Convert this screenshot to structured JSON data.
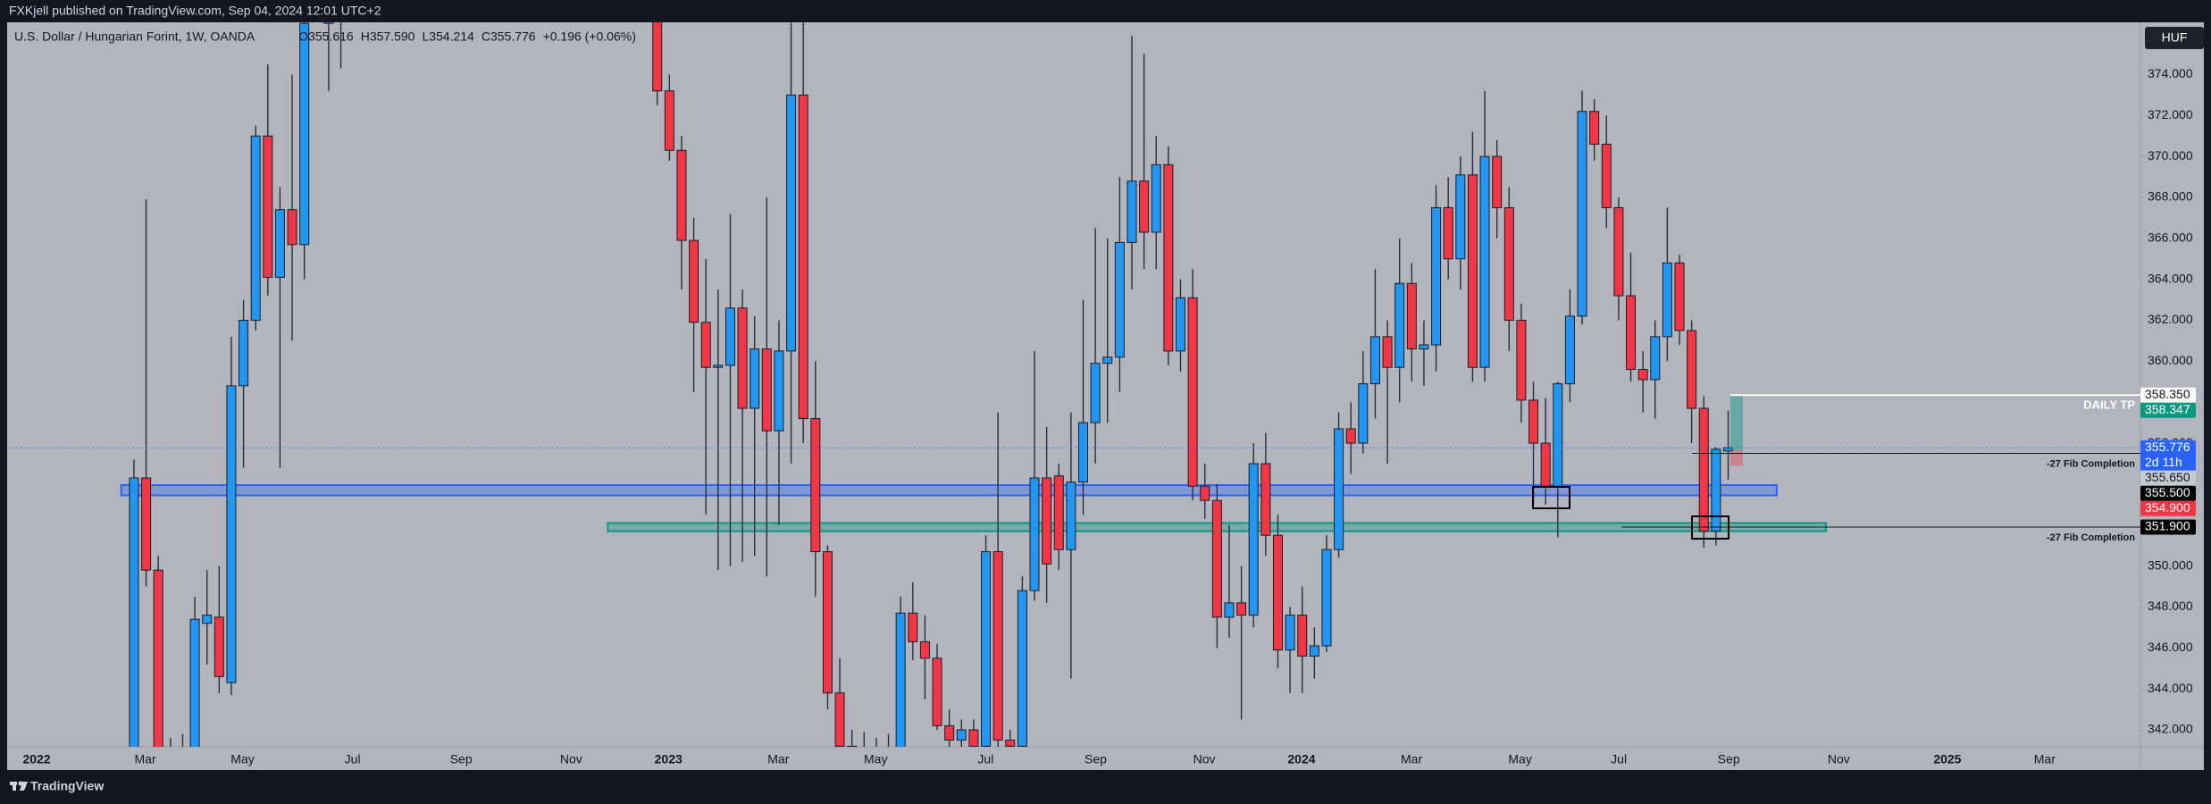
{
  "header": {
    "published": "FXKjell published on TradingView.com, Sep 04, 2024 12:01 UTC+2"
  },
  "chart_data": {
    "type": "candlestick",
    "title": "U.S. Dollar / Hungarian Forint, 1W, OANDA",
    "ohlc_legend": [
      "O355.616",
      "H357.590",
      "L354.214",
      "C355.776",
      "+0.196 (+0.06%)"
    ],
    "currency": "HUF",
    "x_labels": [
      "2022",
      "Mar",
      "May",
      "Jul",
      "Sep",
      "Nov",
      "2023",
      "Mar",
      "May",
      "Jul",
      "Sep",
      "Nov",
      "2024",
      "Mar",
      "May",
      "Jul",
      "Sep",
      "Nov",
      "2025",
      "Mar"
    ],
    "open": [
      340.5,
      354.3,
      349.8,
      341,
      339,
      340.5,
      347.2,
      347.5,
      344.3,
      358.8,
      362,
      371,
      364.1,
      367.4,
      365.7,
      null,
      376.5,
      378,
      null,
      null,
      null,
      null,
      null,
      null,
      null,
      null,
      null,
      null,
      null,
      null,
      null,
      null,
      null,
      null,
      null,
      null,
      null,
      null,
      null,
      null,
      null,
      null,
      null,
      378,
      373.2,
      370.3,
      365.9,
      361.9,
      359.7,
      359.8,
      362.6,
      357.7,
      360.6,
      356.6,
      360.5,
      373,
      357.2,
      350.7,
      343.8,
      341.2,
      339.8,
      339.5,
      340.5,
      339.6,
      347.7,
      346.3,
      345.5,
      342.2,
      341.5,
      342,
      341.2,
      350.7,
      341.5,
      341.2,
      348.8,
      354.3,
      354.4,
      350.8,
      354.1,
      357,
      359.9,
      360.2,
      365.8,
      368.8,
      366.3,
      369.6,
      360.5,
      363.1,
      353.9,
      353.2,
      347.5,
      348.2,
      347.6,
      355,
      351.5,
      345.9,
      347.6,
      345.6,
      346.1,
      350.8,
      356.7,
      356,
      358.9,
      361.2,
      359.7,
      363.8,
      360.6,
      360.8,
      367.5,
      365,
      369.1,
      359.7,
      370,
      367.5,
      362,
      358.1,
      356,
      353.9,
      358.9,
      362.2,
      372.2,
      370.6,
      367.5,
      363.2,
      359.6,
      359.1,
      361.2,
      364.8,
      361.5,
      357.7,
      351.7,
      355.616
    ],
    "high": [
      355.2,
      367.9,
      350.5,
      341.6,
      341.8,
      348.5,
      349.8,
      350,
      361.2,
      363,
      371.5,
      374.5,
      368.5,
      374,
      378,
      null,
      381,
      381,
      null,
      null,
      null,
      null,
      null,
      null,
      null,
      null,
      null,
      null,
      null,
      null,
      null,
      null,
      null,
      null,
      null,
      null,
      null,
      null,
      null,
      null,
      null,
      null,
      null,
      378.8,
      374,
      371,
      367,
      365,
      363.5,
      367.2,
      363.5,
      362.2,
      368,
      362,
      378,
      378,
      360,
      351,
      345.5,
      342,
      341.9,
      341.6,
      341.8,
      348.5,
      349.2,
      347.6,
      346.2,
      343,
      342.5,
      342.5,
      351.5,
      357.5,
      342,
      349.5,
      360.5,
      356.8,
      355,
      357.5,
      363,
      366.5,
      366,
      369,
      375.9,
      375,
      371,
      370.5,
      364,
      364.5,
      355,
      354,
      352,
      350,
      356,
      356.5,
      352.5,
      348,
      349,
      347,
      351.5,
      357.5,
      358,
      360.5,
      364.5,
      362,
      366,
      364.8,
      362,
      368.6,
      369,
      370,
      371.2,
      373.2,
      370.8,
      368.5,
      362.8,
      359,
      358.2,
      359,
      363.5,
      373.2,
      372.8,
      372,
      368,
      365.3,
      360.5,
      362,
      367.5,
      365.2,
      362,
      358.3,
      355.8,
      357.59
    ],
    "low": [
      339.5,
      349,
      340,
      338,
      337,
      340,
      345.2,
      343.8,
      343.7,
      354.8,
      361.5,
      363.2,
      354.8,
      361,
      364,
      null,
      373.2,
      374.3,
      null,
      null,
      null,
      null,
      null,
      null,
      null,
      null,
      null,
      null,
      null,
      null,
      null,
      null,
      null,
      null,
      null,
      null,
      null,
      null,
      null,
      null,
      null,
      null,
      null,
      372.5,
      369.8,
      363.5,
      358.5,
      352.5,
      349.8,
      350,
      350.2,
      350.5,
      349.5,
      352,
      355,
      356,
      348.5,
      343,
      340,
      339,
      338.5,
      338.2,
      339,
      339.3,
      345.4,
      343.5,
      342,
      341,
      340.8,
      340.5,
      340.8,
      340.5,
      340,
      340.5,
      348.3,
      348.2,
      349.8,
      344.5,
      352.5,
      355,
      357,
      358.5,
      363.5,
      364.5,
      364.5,
      359.8,
      359.5,
      353.2,
      352.3,
      346,
      346.5,
      342.5,
      347,
      350.5,
      345,
      343.8,
      343.8,
      344.5,
      345.8,
      350.4,
      354.5,
      355.5,
      357.2,
      355,
      358,
      359,
      358.8,
      359.5,
      364,
      363.5,
      359,
      359,
      366,
      360.5,
      357,
      353,
      353,
      351.4,
      358,
      361.8,
      369.8,
      366.5,
      362,
      359,
      357.5,
      357.2,
      360,
      360.8,
      356,
      350.9,
      351,
      354.214
    ],
    "close": [
      354.3,
      349.8,
      340.8,
      339,
      340.5,
      347.4,
      347.6,
      344.6,
      358.8,
      362,
      371,
      364.1,
      367.4,
      365.7,
      376.5,
      null,
      378,
      379,
      null,
      null,
      null,
      null,
      null,
      null,
      null,
      null,
      null,
      null,
      null,
      null,
      null,
      null,
      null,
      null,
      null,
      null,
      null,
      null,
      null,
      null,
      null,
      null,
      null,
      373.2,
      370.3,
      365.9,
      361.9,
      359.7,
      359.8,
      362.6,
      357.7,
      360.6,
      356.6,
      360.5,
      373,
      357.2,
      350.7,
      343.8,
      341.2,
      339.8,
      339.5,
      340.5,
      339.6,
      347.7,
      346.3,
      345.5,
      342.2,
      341.5,
      342,
      341.2,
      350.7,
      341.5,
      341.2,
      348.8,
      354.3,
      350.1,
      350.8,
      354.1,
      357,
      359.9,
      360.2,
      365.8,
      368.8,
      366.3,
      369.6,
      360.5,
      363.1,
      353.9,
      353.2,
      347.5,
      348.2,
      347.6,
      355,
      351.5,
      345.9,
      347.6,
      345.6,
      346.1,
      350.8,
      356.7,
      356,
      358.9,
      361.2,
      359.7,
      363.8,
      360.6,
      360.8,
      367.5,
      365,
      369.1,
      359.7,
      370,
      367.5,
      362,
      358.1,
      356,
      353.9,
      358.9,
      362.2,
      372.2,
      370.6,
      367.5,
      363.2,
      359.6,
      359.1,
      361.2,
      364.8,
      361.5,
      357.7,
      351.7,
      355.7,
      355.776
    ],
    "up_color": "#2196f3",
    "down_color": "#f23645",
    "ylim": [
      341.17,
      376.55
    ],
    "yticks": [
      {
        "value": 342,
        "label": "342.000"
      },
      {
        "value": 344,
        "label": "344.000"
      },
      {
        "value": 346,
        "label": "346.000"
      },
      {
        "value": 348,
        "label": "348.000"
      },
      {
        "value": 350,
        "label": "350.000"
      },
      {
        "value": 352,
        "label": "352.000"
      },
      {
        "value": 354,
        "label": "354.000"
      },
      {
        "value": 356,
        "label": "356.000"
      },
      {
        "value": 358,
        "label": "358.000"
      },
      {
        "value": 360,
        "label": "360.000"
      },
      {
        "value": 362,
        "label": "362.000"
      },
      {
        "value": 364,
        "label": "364.000"
      },
      {
        "value": 366,
        "label": "366.000"
      },
      {
        "value": 368,
        "label": "368.000"
      },
      {
        "value": 370,
        "label": "370.000"
      },
      {
        "value": 372,
        "label": "372.000"
      },
      {
        "value": 374,
        "label": "374.000"
      }
    ],
    "zones": [
      {
        "low": 353.45,
        "high": 353.95,
        "color": "#2962ff"
      },
      {
        "low": 351.7,
        "high": 352.1,
        "color": "#089981"
      }
    ],
    "levels": [
      {
        "value": 358.35,
        "label": "DAILY TP",
        "color": "#ffffff"
      },
      {
        "value": 355.5,
        "label": "-27 Fib Completion",
        "color": "#131722"
      },
      {
        "value": 351.9,
        "label": "-27 Fib Completion",
        "color": "#131722"
      }
    ],
    "position": {
      "target": 358.347,
      "entry": 355.65,
      "stop": 354.9
    },
    "price_tags": [
      {
        "value": 358.35,
        "label": "358.350",
        "bg": "#ffffff",
        "fg": "#131722"
      },
      {
        "value": 358.347,
        "label": "358.347",
        "bg": "#089981",
        "fg": "#ffffff"
      },
      {
        "value": 355.776,
        "label": "355.776",
        "sub": "2d 11h",
        "bg": "#2962ff",
        "fg": "#ffffff"
      },
      {
        "value": 355.65,
        "label": "355.650",
        "bg": "#c5c8d0",
        "fg": "#131722"
      },
      {
        "value": 355.5,
        "label": "355.500",
        "bg": "#000000",
        "fg": "#ffffff"
      },
      {
        "value": 354.9,
        "label": "354.900",
        "bg": "#f23645",
        "fg": "#ffffff"
      },
      {
        "value": 351.9,
        "label": "351.900",
        "bg": "#000000",
        "fg": "#ffffff"
      }
    ]
  },
  "footer": {
    "brand": "TradingView"
  }
}
